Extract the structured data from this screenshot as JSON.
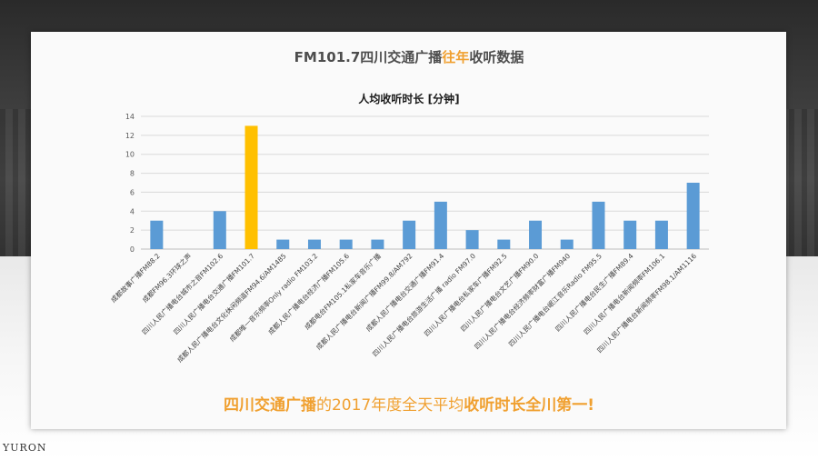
{
  "page_title": {
    "part1": "FM101.7四川交通广播",
    "highlight": "往年",
    "part2": "收听数据"
  },
  "footer": {
    "part1": "四川交通广播",
    "part2": "的2017年度全天平均",
    "part3": "收听时长全川第一!"
  },
  "watermark": "YURON",
  "colors": {
    "bar": "#5b9bd5",
    "highlight_bar": "#ffc000",
    "accent_text": "#f0a030"
  },
  "chart_data": {
    "type": "bar",
    "title": "人均收听时长 [分钟]",
    "ylim": [
      0,
      14
    ],
    "yticks": [
      0,
      2,
      4,
      6,
      8,
      10,
      12,
      14
    ],
    "grid": true,
    "highlight_index": 3,
    "categories": [
      "成都故事广播FM88.2",
      "成都FM96.3环球之声",
      "四川人民广播电台城市之音FM102.6",
      "四川人民广播电台交通广播FM101.7",
      "成都人民广播电台文化休闲频道FM94.6/AM1485",
      "成都唯一音乐频率Only radio FM103.2",
      "成都人民广播电台经济广播FM105.6",
      "成都电台FM105.1私家车音乐广播",
      "成都人民广播电台新闻广播FM99.8/AM792",
      "成都人民广播电台交通广播FM91.4",
      "四川人民广播电台旅游生活广播 radio FM97.0",
      "四川人民广播电台私家车广播FM92.5",
      "四川人民广播电台文艺广播FM90.0",
      "四川人民广播电台经济频率财富广播FM940",
      "四川人民广播电台岷江音乐Radio FM95.5",
      "四川人民广播电台民生广播FM89.4",
      "四川人民广播电台新闻频率FM106.1",
      "四川人民广播电台新闻频率FM98.1/AM1116"
    ],
    "values": [
      3,
      0,
      4,
      13,
      1,
      1,
      1,
      1,
      3,
      5,
      2,
      1,
      3,
      1,
      5,
      3,
      3,
      7
    ]
  }
}
